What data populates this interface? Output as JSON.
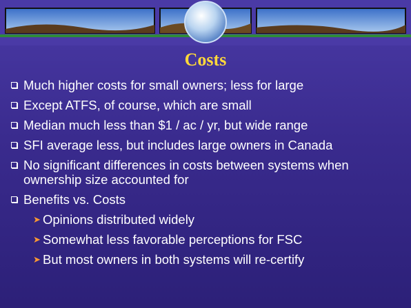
{
  "title": "Costs",
  "bullets": [
    {
      "text": "Much higher costs for small owners; less for large",
      "sub": []
    },
    {
      "text": "Except ATFS, of course, which are small",
      "sub": []
    },
    {
      "text": "Median much less than $1 / ac / yr, but wide range",
      "sub": []
    },
    {
      "text": "SFI average less, but  includes large owners in Canada",
      "sub": []
    },
    {
      "text": "No significant differences in costs between systems when ownership size accounted for",
      "sub": []
    },
    {
      "text": "Benefits vs. Costs",
      "sub": [
        "Opinions distributed widely",
        "Somewhat less favorable perceptions for FSC",
        "But most owners in both systems will re-certify"
      ]
    }
  ]
}
